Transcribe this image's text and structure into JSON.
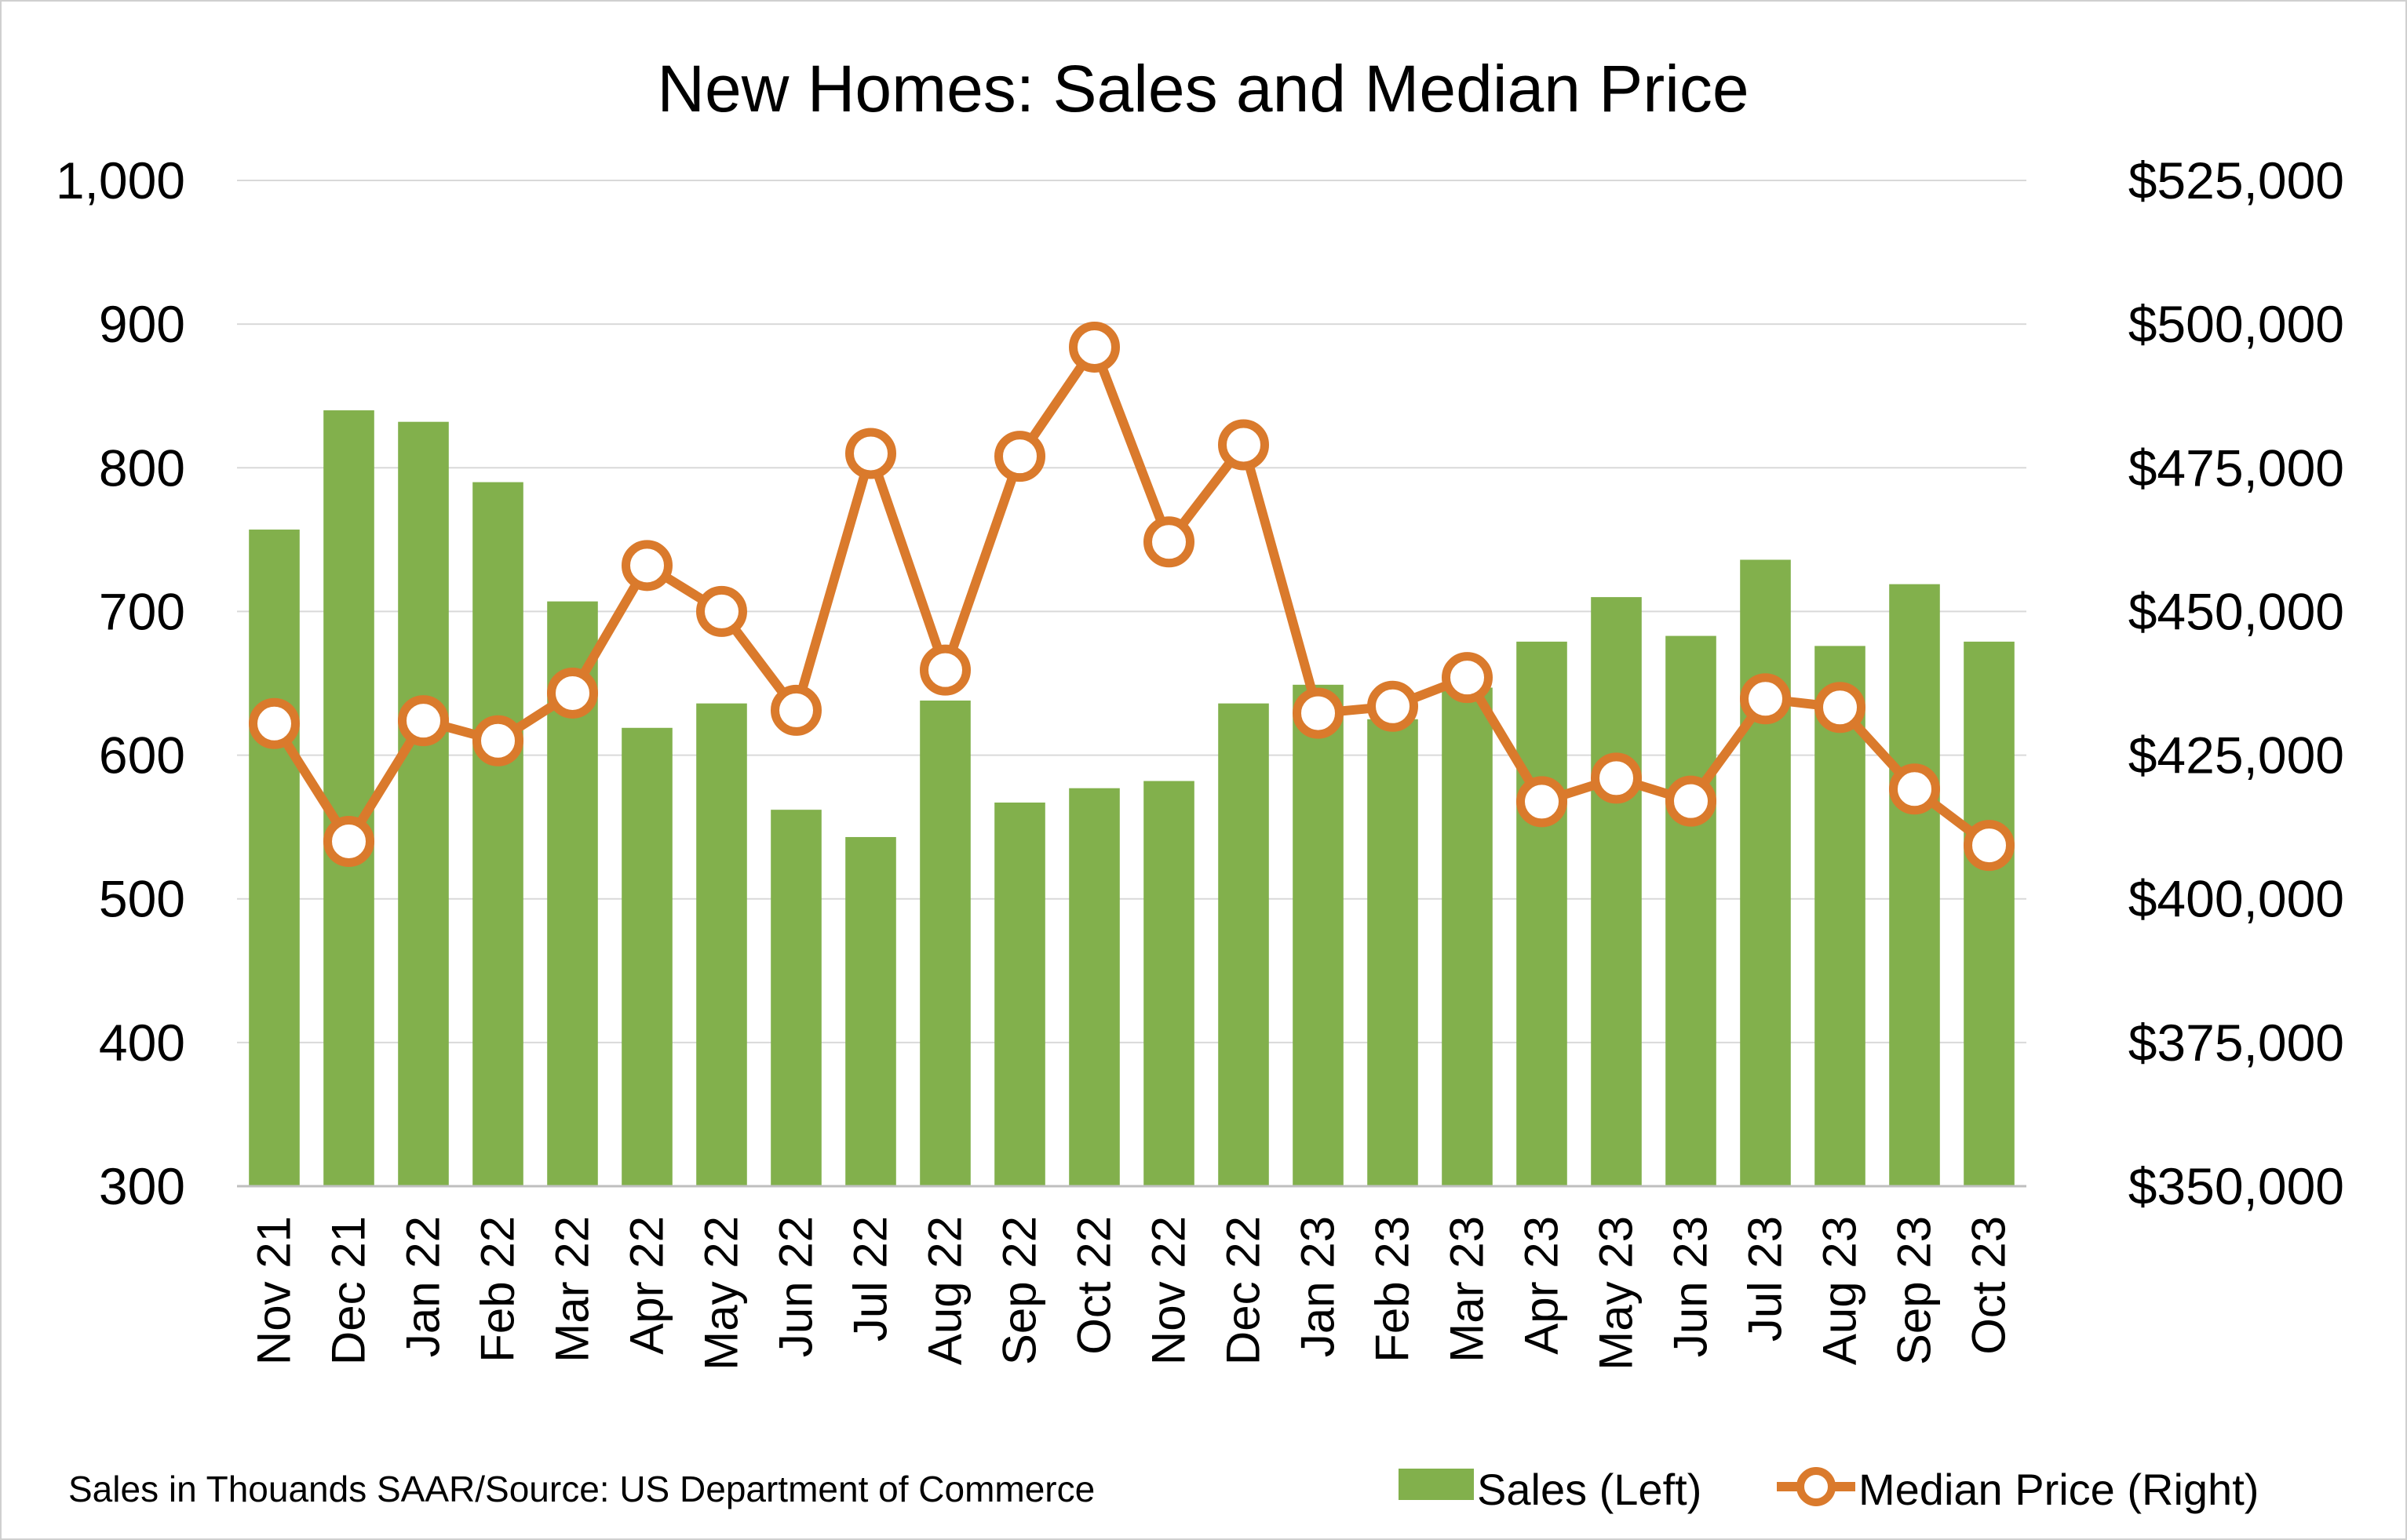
{
  "chart_data": {
    "type": "bar",
    "title": "New Homes: Sales and Median Price",
    "categories": [
      "Nov 21",
      "Dec 21",
      "Jan 22",
      "Feb 22",
      "Mar 22",
      "Apr 22",
      "May 22",
      "Jun 22",
      "Jul 22",
      "Aug 22",
      "Sep 22",
      "Oct 22",
      "Nov 22",
      "Dec 22",
      "Jan 23",
      "Feb 23",
      "Mar 23",
      "Apr 23",
      "May 23",
      "Jun 23",
      "Jul 23",
      "Aug 23",
      "Sep 23",
      "Oct 23"
    ],
    "series": [
      {
        "name": "Sales (Left)",
        "type": "bar",
        "axis": "left",
        "color": "#82b04c",
        "values": [
          757,
          840,
          832,
          790,
          707,
          619,
          636,
          562,
          543,
          638,
          567,
          577,
          582,
          636,
          649,
          625,
          647,
          679,
          710,
          683,
          736,
          676,
          719,
          679
        ]
      },
      {
        "name": "Median Price (Right)",
        "type": "line",
        "axis": "right",
        "color": "#da7a2c",
        "values": [
          430500,
          410000,
          431000,
          427500,
          435800,
          458000,
          450000,
          432800,
          477500,
          439800,
          477000,
          496000,
          462100,
          479000,
          432300,
          433500,
          438500,
          416900,
          421000,
          417000,
          434800,
          433300,
          419100,
          409300
        ]
      }
    ],
    "y_left": {
      "min": 300,
      "max": 1000,
      "step": 100,
      "tick_labels": [
        "300",
        "400",
        "500",
        "600",
        "700",
        "800",
        "900",
        "1,000"
      ]
    },
    "y_right": {
      "min": 350000,
      "max": 525000,
      "step": 25000,
      "tick_labels": [
        "$350,000",
        "$375,000",
        "$400,000",
        "$425,000",
        "$450,000",
        "$475,000",
        "$500,000",
        "$525,000"
      ]
    },
    "grid": true,
    "legend_placement": "bottom-right",
    "note": "Sales in Thouands SAAR/Source: US Department of Commerce"
  }
}
